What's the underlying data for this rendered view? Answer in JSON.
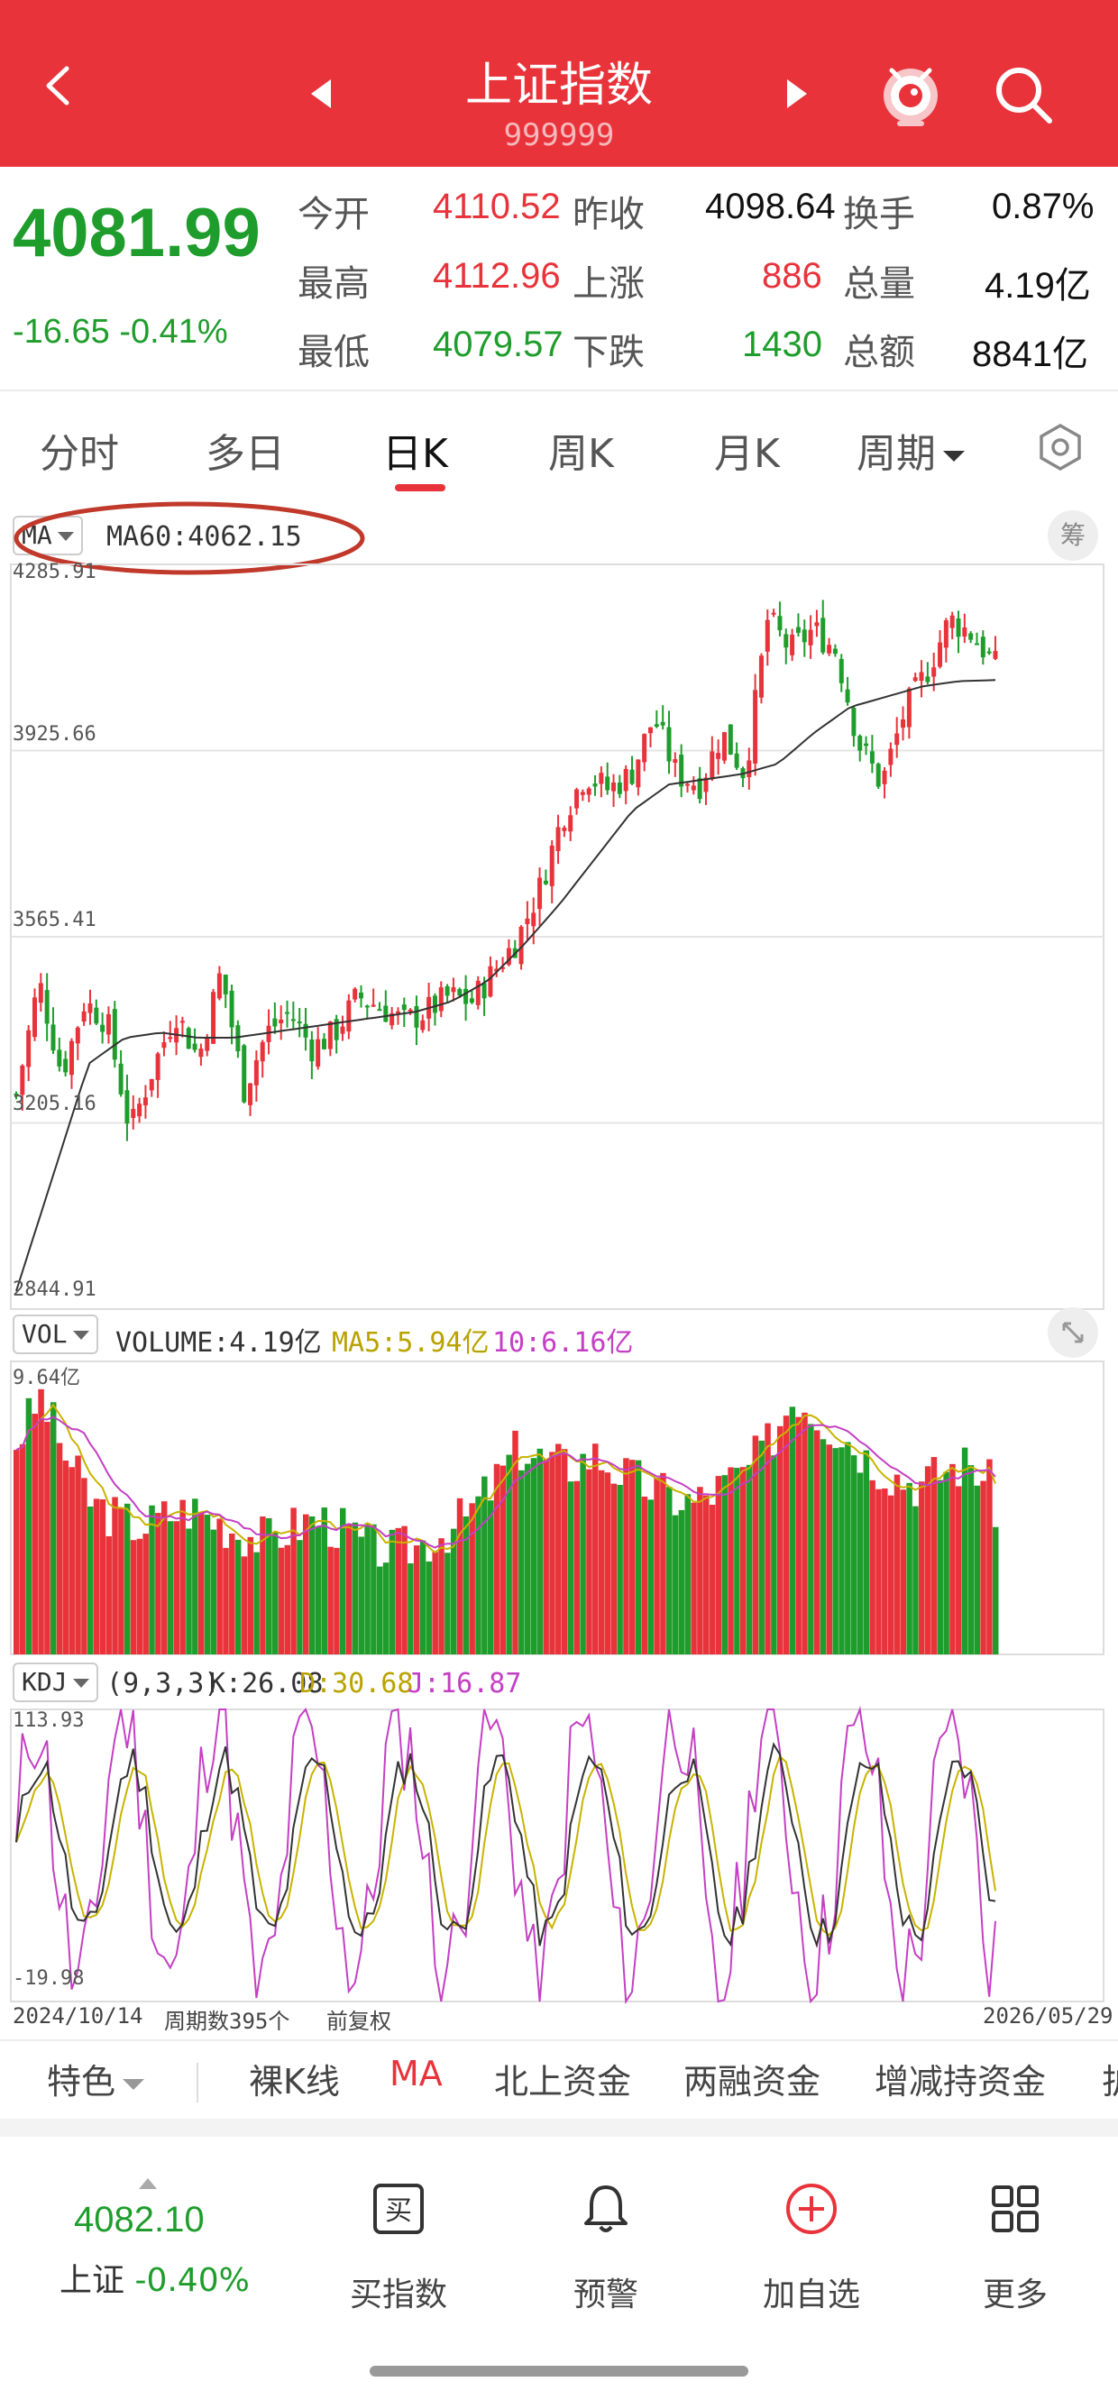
{
  "header": {
    "title": "上证指数",
    "code": "999999"
  },
  "quote": {
    "price": "4081.99",
    "change": "-16.65",
    "change_pct": "-0.41%",
    "rows": [
      {
        "l1": "今开",
        "v1": "4110.52",
        "l2": "昨收",
        "v2": "4098.64",
        "l3": "换手",
        "v3": "0.87%"
      },
      {
        "l1": "最高",
        "v1": "4112.96",
        "l2": "上涨",
        "v2": "886",
        "l3": "总量",
        "v3": "4.19亿"
      },
      {
        "l1": "最低",
        "v1": "4079.57",
        "l2": "下跌",
        "v2": "1430",
        "l3": "总额",
        "v3": "8841亿"
      }
    ]
  },
  "tabs": [
    {
      "label": "分时"
    },
    {
      "label": "多日"
    },
    {
      "label": "日K",
      "active": true
    },
    {
      "label": "周K"
    },
    {
      "label": "月K"
    },
    {
      "label": "周期"
    }
  ],
  "main_panel": {
    "indicator": "MA",
    "ma60_text": "MA60:4062.15",
    "chip_badge": "筹",
    "y_ticks": [
      "4285.91",
      "3925.66",
      "3565.41",
      "3205.16",
      "2844.91"
    ]
  },
  "volume_panel": {
    "indicator": "VOL",
    "volume_text": "VOLUME:4.19亿",
    "ma5_text": "MA5:5.94亿",
    "ma10_text": "10:6.16亿",
    "y_max": "9.64亿"
  },
  "kdj_panel": {
    "indicator": "KDJ",
    "params": "(9,3,3)",
    "k_text": "K:26.08",
    "d_text": "D:30.68",
    "j_text": "J:16.87",
    "y_max": "113.93",
    "y_min": "-19.98"
  },
  "date_bar": {
    "start": "2024/10/14",
    "period_count": "周期数395个",
    "adjust": "前复权",
    "end": "2026/05/29"
  },
  "chips": [
    "特色",
    "裸K线",
    "MA",
    "北上资金",
    "两融资金",
    "增减持资金",
    "护"
  ],
  "footer": {
    "price": "4082.10",
    "sub_label": "上证",
    "sub_change": "-0.40%",
    "buttons": [
      {
        "label": "买指数",
        "icon": "buy-icon"
      },
      {
        "label": "预警",
        "icon": "bell-icon"
      },
      {
        "label": "加自选",
        "icon": "add-circle-icon"
      },
      {
        "label": "更多",
        "icon": "grid-icon"
      }
    ]
  },
  "colors": {
    "red": "#e8333b",
    "green": "#1f9d2c",
    "ma_yellow": "#c9b300",
    "ma_magenta": "#c43fc4"
  },
  "chart_data": {
    "type": "candlestick",
    "x_range": [
      "2024/10/14",
      "2026/05/29"
    ],
    "periods": 395,
    "ylim": [
      2844.91,
      4285.91
    ],
    "ma60_last": 4062.15,
    "close_samples": [
      3260,
      3480,
      3300,
      3440,
      3400,
      3190,
      3310,
      3420,
      3330,
      3500,
      3270,
      3380,
      3420,
      3350,
      3380,
      3450,
      3430,
      3400,
      3420,
      3450,
      3440,
      3500,
      3560,
      3660,
      3800,
      3880,
      3850,
      3880,
      3990,
      3880,
      3860,
      3960,
      3880,
      4180,
      4120,
      4160,
      4120,
      3940,
      3860,
      4000,
      4080,
      4180,
      4150,
      4090
    ],
    "ma60_samples": [
      2880,
      3100,
      3320,
      3370,
      3380,
      3370,
      3370,
      3380,
      3390,
      3400,
      3410,
      3420,
      3440,
      3480,
      3550,
      3630,
      3720,
      3810,
      3860,
      3870,
      3880,
      3900,
      3960,
      4010,
      4030,
      4050,
      4060,
      4062
    ],
    "volume_ylim": [
      0,
      9.64
    ],
    "volume_unit": "亿",
    "volume_last": 4.19,
    "volume_ma5_last": 5.94,
    "volume_ma10_last": 6.16,
    "kdj_ylim": [
      -19.98,
      113.93
    ],
    "kdj_last": {
      "K": 26.08,
      "D": 30.68,
      "J": 16.87
    }
  }
}
